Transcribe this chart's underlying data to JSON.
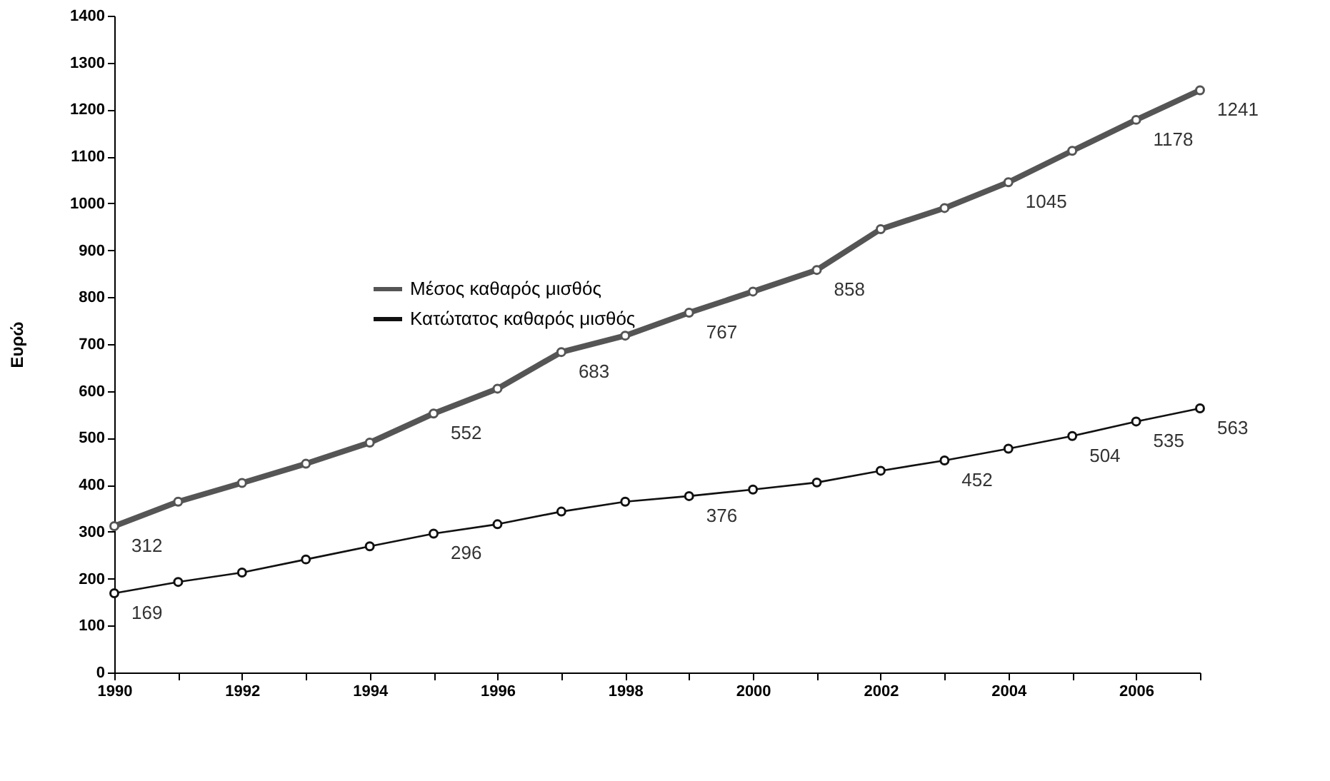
{
  "chart_data": {
    "type": "line",
    "ylabel": "Ευρώ",
    "x": [
      1990,
      1991,
      1992,
      1993,
      1994,
      1995,
      1996,
      1997,
      1998,
      1999,
      2000,
      2001,
      2002,
      2003,
      2004,
      2005,
      2006,
      2007
    ],
    "series": [
      {
        "name": "Μέσος καθαρός μισθός",
        "color": "#555555",
        "values": [
          312,
          364,
          404,
          445,
          490,
          552,
          605,
          683,
          718,
          767,
          812,
          858,
          945,
          990,
          1045,
          1112,
          1178,
          1241
        ],
        "value_labels": [
          "312",
          null,
          null,
          null,
          null,
          "552",
          null,
          "683",
          null,
          "767",
          null,
          "858",
          null,
          null,
          "1045",
          null,
          "1178",
          "1241"
        ]
      },
      {
        "name": "Κατώτατος καθαρός μισθός",
        "color": "#111111",
        "values": [
          169,
          193,
          213,
          241,
          269,
          296,
          316,
          343,
          364,
          376,
          390,
          405,
          430,
          452,
          477,
          504,
          535,
          563
        ],
        "value_labels": [
          "169",
          null,
          null,
          null,
          null,
          "296",
          null,
          null,
          null,
          "376",
          null,
          null,
          null,
          "452",
          null,
          "504",
          "535",
          "563"
        ]
      }
    ],
    "xlim": [
      1990,
      2007
    ],
    "xticks": [
      1990,
      {
        "value": 1991,
        "label": null
      },
      1992,
      {
        "value": 1993,
        "label": null
      },
      1994,
      {
        "value": 1995,
        "label": null
      },
      1996,
      {
        "value": 1997,
        "label": null
      },
      1998,
      {
        "value": 1999,
        "label": null
      },
      2000,
      {
        "value": 2001,
        "label": null
      },
      2002,
      {
        "value": 2003,
        "label": null
      },
      2004,
      {
        "value": 2005,
        "label": null
      },
      2006,
      {
        "value": 2007,
        "label": null
      }
    ],
    "ylim": [
      0,
      1400
    ],
    "yticks": [
      0,
      100,
      200,
      300,
      400,
      500,
      600,
      700,
      800,
      900,
      1000,
      1100,
      1200,
      1300,
      1400
    ],
    "grid": false,
    "legend": "top left",
    "marker": "circle",
    "line_style": "solid"
  }
}
